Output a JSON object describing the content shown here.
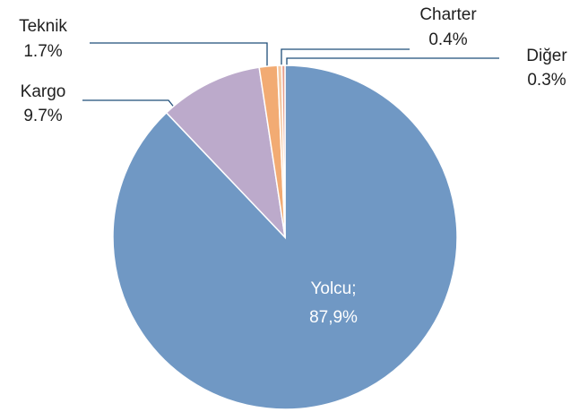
{
  "chart_data": {
    "type": "pie",
    "categories": [
      "Yolcu;",
      "Kargo",
      "Teknik",
      "Charter",
      "Diğer"
    ],
    "values": [
      87.9,
      9.7,
      1.7,
      0.4,
      0.3
    ],
    "value_labels": [
      "87,9%",
      "9.7%",
      "1.7%",
      "0.4%",
      "0.3%"
    ],
    "colors": [
      "#7098c4",
      "#bcaacb",
      "#f2ab73",
      "#f5c8a2",
      "#e8a08e"
    ]
  }
}
